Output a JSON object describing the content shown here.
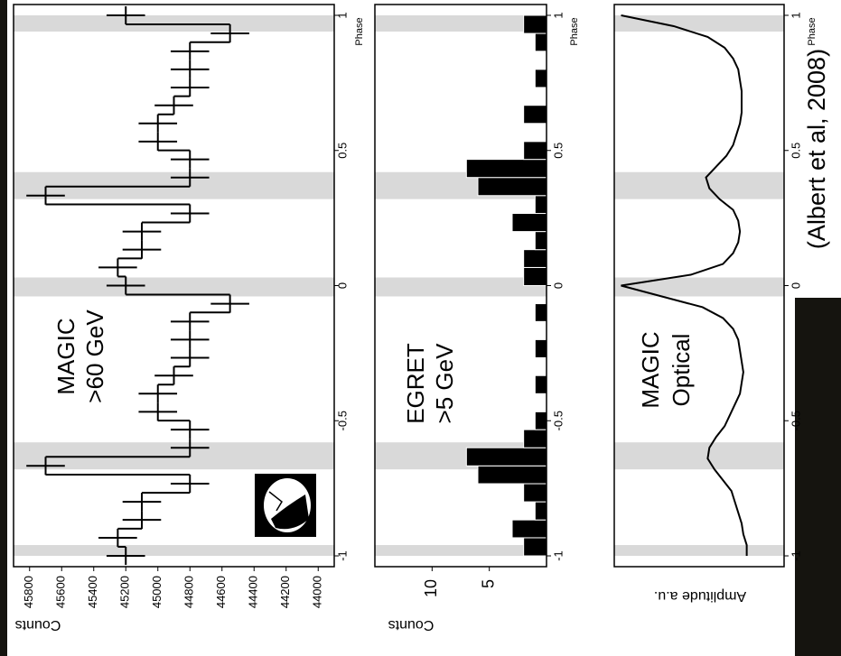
{
  "chart_data": [
    {
      "type": "errorbar_step",
      "y_label": "Counts",
      "x_label": "Phase",
      "annotations": [
        "MAGIC",
        ">60 GeV"
      ],
      "x": [
        -1,
        -0.933,
        -0.867,
        -0.8,
        -0.733,
        -0.667,
        -0.6,
        -0.533,
        -0.467,
        -0.4,
        -0.333,
        -0.267,
        -0.2,
        -0.133,
        -0.067,
        0,
        0.067,
        0.133,
        0.2,
        0.267,
        0.333,
        0.4,
        0.467,
        0.533,
        0.6,
        0.667,
        0.733,
        0.8,
        0.867,
        0.933,
        1
      ],
      "values": [
        45200,
        45250,
        45100,
        45100,
        44800,
        45700,
        44800,
        44800,
        45000,
        45000,
        44900,
        44800,
        44800,
        44800,
        44550,
        45200,
        45250,
        45100,
        45100,
        44800,
        45700,
        44800,
        44800,
        45000,
        45000,
        44900,
        44800,
        44800,
        44800,
        44550,
        45200
      ],
      "error": 120,
      "color": "#000000",
      "xlim": [
        -1.04,
        1.04
      ],
      "xticks": [
        -1,
        -0.5,
        0,
        0.5,
        1
      ],
      "ylim": [
        43900,
        45900
      ],
      "yticks": [
        44000,
        44200,
        44400,
        44600,
        44800,
        45000,
        45200,
        45400,
        45600,
        45800
      ],
      "shaded_regions": [
        [
          -1,
          -0.96
        ],
        [
          -0.68,
          -0.58
        ],
        [
          -0.04,
          0.03
        ],
        [
          0.32,
          0.42
        ],
        [
          0.94,
          1
        ]
      ]
    },
    {
      "type": "histogram",
      "y_label": "Counts",
      "x_label": "Phase",
      "annotations": [
        "EGRET",
        ">5 GeV"
      ],
      "bins": [
        -1,
        -0.933,
        -0.867,
        -0.8,
        -0.733,
        -0.667,
        -0.6,
        -0.533,
        -0.467,
        -0.4,
        -0.333,
        -0.267,
        -0.2,
        -0.133,
        -0.067,
        0,
        0.067,
        0.133,
        0.2,
        0.267,
        0.333,
        0.4,
        0.467,
        0.533,
        0.6,
        0.667,
        0.733,
        0.8,
        0.867,
        0.933,
        1
      ],
      "values": [
        2,
        3,
        1,
        2,
        6,
        7,
        2,
        1,
        0,
        1,
        0,
        1,
        0,
        1,
        0,
        2,
        2,
        1,
        3,
        1,
        6,
        7,
        2,
        0,
        2,
        0,
        1,
        0,
        1,
        2
      ],
      "color": "#000000",
      "xlim": [
        -1.04,
        1.04
      ],
      "xticks": [
        -1,
        -0.5,
        0,
        0.5,
        1
      ],
      "ylim": [
        0,
        15
      ],
      "yticks": [
        5,
        10
      ],
      "shaded_regions": [
        [
          -1,
          -0.96
        ],
        [
          -0.68,
          -0.58
        ],
        [
          -0.04,
          0.03
        ],
        [
          0.32,
          0.42
        ],
        [
          0.94,
          1
        ]
      ]
    },
    {
      "type": "line",
      "y_label": "Amplitude a.u.",
      "x_label": "Phase",
      "annotations": [
        "MAGIC",
        "Optical"
      ],
      "x": [
        -1,
        -0.96,
        -0.92,
        -0.88,
        -0.84,
        -0.8,
        -0.76,
        -0.72,
        -0.68,
        -0.64,
        -0.6,
        -0.56,
        -0.52,
        -0.48,
        -0.44,
        -0.4,
        -0.36,
        -0.32,
        -0.28,
        -0.24,
        -0.2,
        -0.16,
        -0.12,
        -0.08,
        -0.04,
        0,
        0.04,
        0.08,
        0.12,
        0.16,
        0.2,
        0.24,
        0.28,
        0.32,
        0.36,
        0.4,
        0.44,
        0.48,
        0.52,
        0.56,
        0.6,
        0.64,
        0.68,
        0.72,
        0.76,
        0.8,
        0.84,
        0.88,
        0.92,
        0.96,
        1
      ],
      "values": [
        0.22,
        0.22,
        0.24,
        0.25,
        0.27,
        0.29,
        0.31,
        0.36,
        0.41,
        0.45,
        0.44,
        0.4,
        0.35,
        0.32,
        0.29,
        0.26,
        0.25,
        0.24,
        0.25,
        0.26,
        0.27,
        0.3,
        0.36,
        0.48,
        0.72,
        0.96,
        0.55,
        0.36,
        0.3,
        0.27,
        0.26,
        0.27,
        0.3,
        0.38,
        0.44,
        0.46,
        0.4,
        0.34,
        0.3,
        0.28,
        0.26,
        0.25,
        0.25,
        0.25,
        0.26,
        0.27,
        0.3,
        0.35,
        0.45,
        0.65,
        0.96
      ],
      "color": "#000000",
      "xlim": [
        -1.04,
        1.04
      ],
      "xticks": [
        -1,
        -0.5,
        0,
        0.5,
        1
      ],
      "ylim": [
        0,
        1
      ],
      "shaded_regions": [
        [
          -1,
          -0.96
        ],
        [
          -0.68,
          -0.58
        ],
        [
          -0.04,
          0.03
        ],
        [
          0.32,
          0.42
        ],
        [
          0.94,
          1
        ]
      ]
    }
  ],
  "citation": "(Albert et al, 2008)"
}
